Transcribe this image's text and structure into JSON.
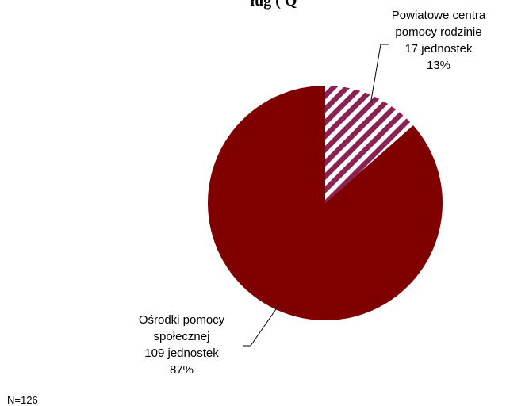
{
  "chart_data": {
    "type": "pie",
    "title": "ług (  Q",
    "slices": [
      {
        "name_lines": [
          "Powiatowe centra",
          "pomocy rodzinie"
        ],
        "count_label": "17 jednostek",
        "percent_label": "13%",
        "value": 17,
        "percent": 13,
        "fill": "hatched",
        "color": "#8b2252"
      },
      {
        "name_lines": [
          "Ośrodki pomocy",
          "społecznej"
        ],
        "count_label": "109 jednostek",
        "percent_label": "87%",
        "value": 109,
        "percent": 87,
        "fill": "solid",
        "color": "#800000"
      }
    ],
    "start": "12 o'clock, clockwise",
    "legend": "none",
    "note": "N=126"
  },
  "colors": {
    "background": "#ffffff",
    "hatch_light": "#ffffff",
    "leader_line": "#000000"
  }
}
